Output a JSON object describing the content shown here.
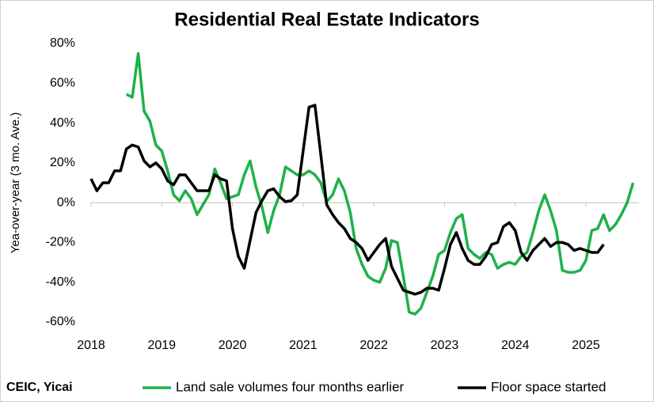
{
  "chart_data": {
    "type": "line",
    "title": "Residential Real Estate Indicators",
    "y_label": "Yea-over-year (3 mo. Ave.)",
    "source": "CEIC, Yicai",
    "x": [
      2018,
      2018.083,
      2018.167,
      2018.25,
      2018.333,
      2018.417,
      2018.5,
      2018.583,
      2018.667,
      2018.75,
      2018.833,
      2018.917,
      2019,
      2019.083,
      2019.167,
      2019.25,
      2019.333,
      2019.417,
      2019.5,
      2019.583,
      2019.667,
      2019.75,
      2019.833,
      2019.917,
      2020,
      2020.083,
      2020.167,
      2020.25,
      2020.333,
      2020.417,
      2020.5,
      2020.583,
      2020.667,
      2020.75,
      2020.833,
      2020.917,
      2021,
      2021.083,
      2021.167,
      2021.25,
      2021.333,
      2021.417,
      2021.5,
      2021.583,
      2021.667,
      2021.75,
      2021.833,
      2021.917,
      2022,
      2022.083,
      2022.167,
      2022.25,
      2022.333,
      2022.417,
      2022.5,
      2022.583,
      2022.667,
      2022.75,
      2022.833,
      2022.917,
      2023,
      2023.083,
      2023.167,
      2023.25,
      2023.333,
      2023.417,
      2023.5,
      2023.583,
      2023.667,
      2023.75,
      2023.833,
      2023.917,
      2024,
      2024.083,
      2024.167,
      2024.25,
      2024.333,
      2024.417,
      2024.5,
      2024.583,
      2024.667,
      2024.75,
      2024.833,
      2024.917,
      2025,
      2025.083,
      2025.167,
      2025.25,
      2025.333,
      2025.417,
      2025.5,
      2025.583,
      2025.667
    ],
    "series": [
      {
        "name": "Land sale volumes four months earlier",
        "color": "#1fb14a",
        "values": [
          null,
          null,
          null,
          null,
          null,
          null,
          54.5,
          53,
          75,
          46,
          41,
          29,
          26,
          16,
          4,
          1,
          6,
          2,
          -6,
          -1,
          4,
          17,
          10,
          2,
          3,
          4,
          14,
          21,
          8,
          -2,
          -15,
          -4,
          4,
          18,
          16,
          14,
          14,
          16,
          14,
          10,
          0.5,
          4,
          12,
          6,
          -5,
          -23,
          -31,
          -37,
          -39,
          -40,
          -33,
          -19,
          -20,
          -37,
          -55,
          -56,
          -53,
          -45,
          -37,
          -26,
          -24,
          -15,
          -8,
          -6,
          -23,
          -26,
          -28,
          -25,
          -26,
          -33,
          -31,
          -30,
          -31,
          -27,
          -25,
          -15,
          -4,
          4,
          -4,
          -14,
          -34,
          -35,
          -35,
          -34,
          -29,
          -14,
          -13,
          -6,
          -14,
          -11,
          -6,
          0,
          10
        ]
      },
      {
        "name": "Floor space started",
        "color": "#000000",
        "values": [
          12,
          6,
          10,
          10,
          16,
          16,
          27,
          29,
          28,
          21,
          18,
          20,
          17,
          11,
          9,
          14,
          14,
          10,
          6,
          6,
          6,
          14,
          12,
          11,
          -13,
          -27,
          -33,
          -19,
          -5,
          1,
          6,
          7,
          3,
          0.5,
          1,
          4,
          26,
          48,
          49,
          24,
          -1,
          -6,
          -10,
          -13,
          -18,
          -20,
          -23,
          -29,
          -25,
          -21,
          -18,
          -32,
          -38,
          -44,
          -45,
          -46,
          -45,
          -43,
          -43,
          -44,
          -33,
          -21,
          -15,
          -23,
          -29,
          -31,
          -31,
          -27,
          -21,
          -20,
          -12,
          -10,
          -14,
          -25,
          -29,
          -24,
          -21,
          -18,
          -22,
          -20,
          -20,
          -21,
          -24,
          -23,
          -24,
          -25,
          -25,
          -21,
          null,
          null,
          null,
          null,
          null
        ]
      }
    ],
    "xlim": [
      2018,
      2025.75
    ],
    "xticks": [
      2018,
      2019,
      2020,
      2021,
      2022,
      2023,
      2024,
      2025
    ],
    "ylim": [
      -60,
      80
    ],
    "yticks": [
      {
        "value": -60,
        "label": "-60%"
      },
      {
        "value": -40,
        "label": "-40%"
      },
      {
        "value": -20,
        "label": "-20%"
      },
      {
        "value": 0,
        "label": "0%"
      },
      {
        "value": 20,
        "label": "20%"
      },
      {
        "value": 40,
        "label": "40%"
      },
      {
        "value": 60,
        "label": "60%"
      },
      {
        "value": 80,
        "label": "80%"
      }
    ],
    "legend": "bottom"
  }
}
